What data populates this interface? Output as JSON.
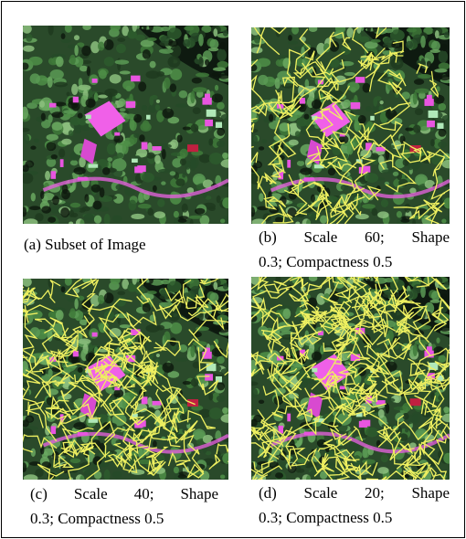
{
  "panels": [
    {
      "caption": [
        "(a) Subset of Image"
      ]
    },
    {
      "caption": [
        "(b) Scale 60; Shape",
        "0.3; Compactness 0.5"
      ]
    },
    {
      "caption": [
        "(c) Scale 40; Shape",
        "0.3; Compactness 0.5"
      ]
    },
    {
      "caption": [
        "(d) Scale 20; Shape",
        "0.3; Compactness 0.5"
      ]
    }
  ]
}
